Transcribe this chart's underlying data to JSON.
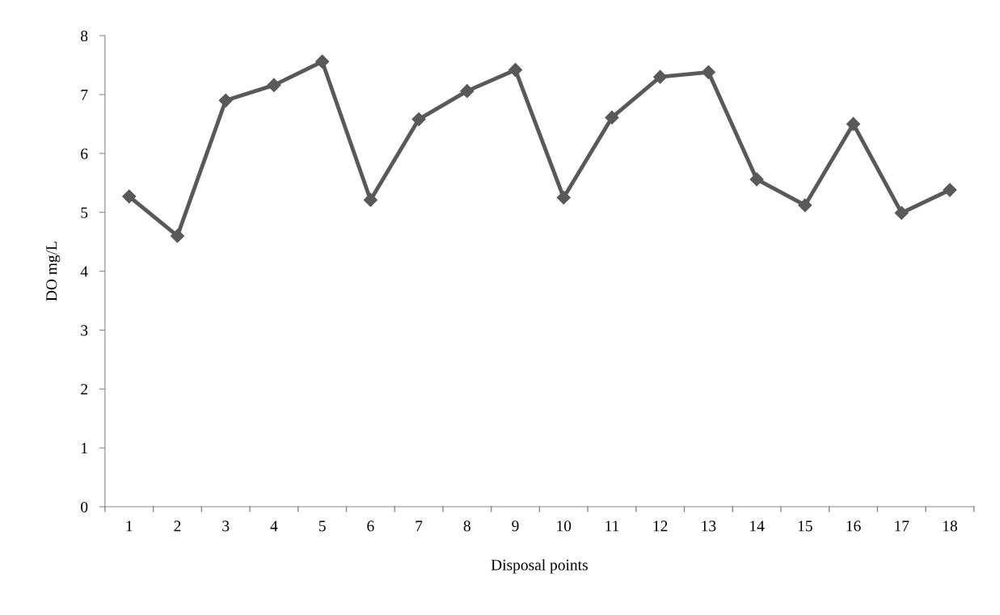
{
  "chart_data": {
    "type": "line",
    "xlabel": "Disposal points",
    "ylabel": "DO mg/L",
    "categories": [
      "1",
      "2",
      "3",
      "4",
      "5",
      "6",
      "7",
      "8",
      "9",
      "10",
      "11",
      "12",
      "13",
      "14",
      "15",
      "16",
      "17",
      "18"
    ],
    "series": [
      {
        "color": "#595959",
        "values": [
          5.27,
          4.6,
          6.9,
          7.16,
          7.56,
          5.21,
          6.58,
          7.06,
          7.42,
          5.25,
          6.61,
          7.3,
          7.38,
          5.56,
          5.12,
          6.5,
          4.99,
          5.38
        ]
      }
    ],
    "ylim": [
      0,
      8
    ],
    "yticks": [
      0,
      1,
      2,
      3,
      4,
      5,
      6,
      7,
      8
    ],
    "grid": false,
    "legend": false,
    "marker": "diamond",
    "line_style": "solid"
  }
}
